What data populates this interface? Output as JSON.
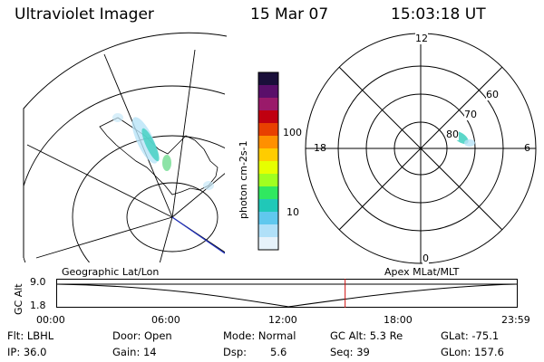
{
  "header": {
    "title": "Ultraviolet Imager",
    "date": "15 Mar 07",
    "time": "15:03:18 UT"
  },
  "colorbar": {
    "unit_label": "photon cm-2s-1",
    "ticks": [
      "100",
      "10"
    ],
    "colors": [
      "#1a0f3a",
      "#5a0f6a",
      "#9a1a6a",
      "#c00010",
      "#e84000",
      "#ff9000",
      "#ffcc00",
      "#e6ff00",
      "#a0ff20",
      "#30e860",
      "#20c8b8",
      "#60c8ee",
      "#b0e0f8",
      "#e6f2fa"
    ]
  },
  "polar": {
    "mlt_labels": [
      "12",
      "18",
      "6",
      "0"
    ],
    "lat_labels": [
      "60",
      "70",
      "80"
    ]
  },
  "timeline": {
    "left_title": "Geographic Lat/Lon",
    "right_title": "Apex MLat/MLT",
    "axis_label": "GC Alt",
    "y_top": "9.0",
    "y_bottom": "1.8",
    "x_ticks": [
      "00:00",
      "06:00",
      "12:00",
      "18:00",
      "23:59"
    ],
    "current_time_hours": 15.055,
    "marker_color": "#d01010"
  },
  "footer": {
    "flt": "Flt: LBHL",
    "door": "Door: Open",
    "mode": "Mode: Normal",
    "gcalt": "GC Alt: 5.3 Re",
    "glat": "GLat: -75.1",
    "ip": "IP: 36.0",
    "gain": "Gain: 14",
    "dsp_label": "Dsp:",
    "dsp_value": "5.6",
    "seq": "Seq: 39",
    "glon": "GLon: 157.6"
  }
}
